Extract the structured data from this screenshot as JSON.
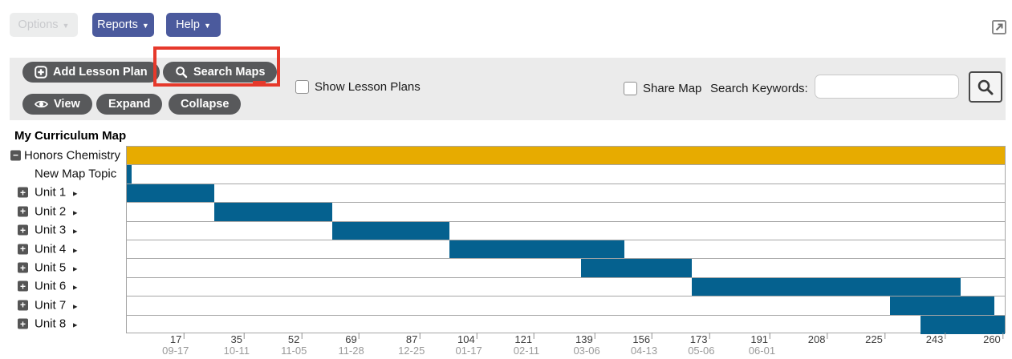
{
  "header": {
    "options_label": "Options",
    "reports_label": "Reports",
    "help_label": "Help",
    "dropdown_arrow": "▼",
    "external_icon": "open-in-new-window"
  },
  "toolbar": {
    "add_lesson_plan_label": "Add Lesson Plan",
    "search_maps_label": "Search Maps",
    "view_label": "View",
    "expand_label": "Expand",
    "collapse_label": "Collapse",
    "show_lesson_plans_label": "Show Lesson Plans",
    "show_lesson_plans_checked": false,
    "share_map_label": "Share Map",
    "share_map_checked": false,
    "search_keywords_label": "Search Keywords:",
    "search_input_value": "",
    "search_input_placeholder": ""
  },
  "annotation": {
    "type": "highlight-box",
    "target": "Search Maps button",
    "color": "#e6392b"
  },
  "map": {
    "title": "My Curriculum Map",
    "tree_icons": {
      "collapse_glyph": "−",
      "expand_glyph": "+"
    },
    "unit_arrow_glyph": "►"
  },
  "chart_data": {
    "type": "gantt",
    "title": "My Curriculum Map",
    "x_axis": {
      "unit": "days",
      "min": 0,
      "max": 261,
      "ticks": [
        {
          "day": 17,
          "date": "09-17"
        },
        {
          "day": 35,
          "date": "10-11"
        },
        {
          "day": 52,
          "date": "11-05"
        },
        {
          "day": 69,
          "date": "11-28"
        },
        {
          "day": 87,
          "date": "12-25"
        },
        {
          "day": 104,
          "date": "01-17"
        },
        {
          "day": 121,
          "date": "02-11"
        },
        {
          "day": 139,
          "date": "03-06"
        },
        {
          "day": 156,
          "date": "04-13"
        },
        {
          "day": 173,
          "date": "05-06"
        },
        {
          "day": 191,
          "date": "06-01"
        },
        {
          "day": 208,
          "date": ""
        },
        {
          "day": 225,
          "date": ""
        },
        {
          "day": 243,
          "date": ""
        },
        {
          "day": 260,
          "date": ""
        }
      ]
    },
    "colors": {
      "map_bar": "#e7ab00",
      "unit_bar": "#05618f",
      "grid": "#a6a6a6"
    },
    "rows": [
      {
        "label": "Honors Chemistry",
        "tree_icon": "collapse",
        "has_arrow": false,
        "indent": 0,
        "start": 0,
        "end": 261,
        "color": "#e7ab00"
      },
      {
        "label": "New Map Topic",
        "tree_icon": null,
        "has_arrow": false,
        "indent": 1,
        "start": 0,
        "end": 1.5,
        "color": "#05618f"
      },
      {
        "label": "Unit 1",
        "tree_icon": "expand",
        "has_arrow": true,
        "indent": 1,
        "start": 0,
        "end": 26,
        "color": "#05618f"
      },
      {
        "label": "Unit 2",
        "tree_icon": "expand",
        "has_arrow": true,
        "indent": 1,
        "start": 26,
        "end": 61,
        "color": "#05618f"
      },
      {
        "label": "Unit 3",
        "tree_icon": "expand",
        "has_arrow": true,
        "indent": 1,
        "start": 61,
        "end": 96,
        "color": "#05618f"
      },
      {
        "label": "Unit 4",
        "tree_icon": "expand",
        "has_arrow": true,
        "indent": 1,
        "start": 96,
        "end": 148,
        "color": "#05618f"
      },
      {
        "label": "Unit 5",
        "tree_icon": "expand",
        "has_arrow": true,
        "indent": 1,
        "start": 135,
        "end": 168,
        "color": "#05618f"
      },
      {
        "label": "Unit 6",
        "tree_icon": "expand",
        "has_arrow": true,
        "indent": 1,
        "start": 168,
        "end": 248,
        "color": "#05618f"
      },
      {
        "label": "Unit 7",
        "tree_icon": "expand",
        "has_arrow": true,
        "indent": 1,
        "start": 227,
        "end": 258,
        "color": "#05618f"
      },
      {
        "label": "Unit 8",
        "tree_icon": "expand",
        "has_arrow": true,
        "indent": 1,
        "start": 236,
        "end": 261,
        "color": "#05618f"
      }
    ]
  }
}
